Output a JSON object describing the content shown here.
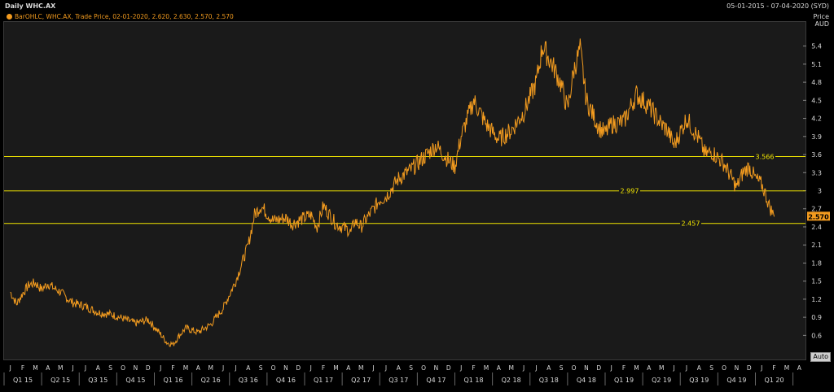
{
  "header": {
    "title": "Daily WHC.AX",
    "date_range": "05-01-2015 - 07-04-2020 (SYD)",
    "legend": "BarOHLC, WHC.AX, Trade Price, 02-01-2020, 2.620, 2.630, 2.570, 2.570",
    "axis_title_line1": "Price",
    "axis_title_line2": "AUD",
    "auto_button": "Auto"
  },
  "colors": {
    "background": "#1a1a1a",
    "series": "#f29b1f",
    "hline": "#f2e600",
    "grid": "#3a3a3a",
    "text": "#d9d9d9"
  },
  "chart_data": {
    "type": "line",
    "title": "Daily WHC.AX",
    "xlabel": "",
    "ylabel": "Price AUD",
    "ylim": [
      0.2,
      5.8
    ],
    "yticks": [
      "0.6",
      "0.9",
      "1.2",
      "1.5",
      "1.8",
      "2.1",
      "2.4",
      "2.7",
      "3",
      "3.3",
      "3.6",
      "3.9",
      "4.2",
      "4.5",
      "4.8",
      "5.1",
      "5.4"
    ],
    "last_price_label": "2.570",
    "last_price": 2.57,
    "month_labels": [
      "J",
      "F",
      "M",
      "A",
      "M",
      "J",
      "J",
      "A",
      "S",
      "O",
      "N",
      "D",
      "J",
      "F",
      "M",
      "A",
      "M",
      "J",
      "J",
      "A",
      "S",
      "O",
      "N",
      "D",
      "J",
      "F",
      "M",
      "A",
      "M",
      "J",
      "J",
      "A",
      "S",
      "O",
      "N",
      "D",
      "J",
      "F",
      "M",
      "A",
      "M",
      "J",
      "J",
      "A",
      "S",
      "O",
      "N",
      "D",
      "J",
      "F",
      "M",
      "A",
      "M",
      "J",
      "J",
      "A",
      "S",
      "O",
      "N",
      "D",
      "J",
      "F",
      "M",
      "A"
    ],
    "quarter_labels": [
      "Q1 15",
      "Q2 15",
      "Q3 15",
      "Q4 15",
      "Q1 16",
      "Q2 16",
      "Q3 16",
      "Q4 16",
      "Q1 17",
      "Q2 17",
      "Q3 17",
      "Q4 17",
      "Q1 18",
      "Q2 18",
      "Q3 18",
      "Q4 18",
      "Q1 19",
      "Q2 19",
      "Q3 19",
      "Q4 19",
      "Q1 20"
    ],
    "hlines": [
      {
        "value": 3.566,
        "label": "3.566"
      },
      {
        "value": 2.997,
        "label": "2.997"
      },
      {
        "value": 2.457,
        "label": "2.457"
      }
    ],
    "series": [
      {
        "name": "WHC.AX",
        "x_months": [
          0,
          0.5,
          1,
          1.5,
          2,
          2.5,
          3,
          3.5,
          4,
          4.5,
          5,
          6,
          7,
          8,
          9,
          10,
          11,
          12,
          12.5,
          13,
          13.5,
          14,
          15,
          16,
          17,
          18,
          18.5,
          19,
          19.5,
          20,
          21,
          22,
          22.5,
          23,
          24,
          24.5,
          25,
          26,
          27,
          27.2,
          27.5,
          28,
          28.5,
          29,
          29.5,
          30,
          31,
          32,
          33,
          34,
          35,
          35.5,
          36,
          37,
          38,
          39,
          40,
          41,
          42,
          42.5,
          43,
          43.5,
          44,
          44.5,
          45,
          45.5,
          46,
          47,
          47.5,
          48,
          49,
          50,
          51,
          52,
          52.5,
          53,
          54,
          55,
          55.5,
          56,
          57,
          57.5,
          58,
          58.5,
          59,
          59.5,
          60,
          60.3,
          60.6,
          61
        ],
        "y": [
          1.32,
          1.12,
          1.3,
          1.44,
          1.47,
          1.36,
          1.46,
          1.38,
          1.32,
          1.22,
          1.14,
          1.08,
          0.98,
          0.95,
          0.88,
          0.8,
          0.86,
          0.62,
          0.48,
          0.45,
          0.6,
          0.72,
          0.65,
          0.78,
          1.05,
          1.5,
          1.8,
          2.1,
          2.6,
          2.75,
          2.5,
          2.55,
          2.45,
          2.5,
          2.6,
          2.4,
          2.75,
          2.45,
          2.35,
          2.3,
          2.5,
          2.4,
          2.55,
          2.7,
          2.85,
          2.9,
          3.2,
          3.35,
          3.55,
          3.75,
          3.5,
          3.4,
          3.9,
          4.5,
          4.1,
          3.85,
          4.0,
          4.3,
          4.8,
          5.4,
          5.2,
          5.0,
          4.75,
          4.35,
          5.0,
          5.35,
          4.5,
          4.05,
          3.95,
          4.1,
          4.15,
          4.6,
          4.4,
          4.1,
          4.0,
          3.75,
          4.2,
          3.85,
          3.6,
          3.65,
          3.45,
          3.25,
          3.05,
          3.3,
          3.4,
          3.2,
          3.1,
          2.95,
          2.75,
          2.57
        ]
      }
    ]
  }
}
